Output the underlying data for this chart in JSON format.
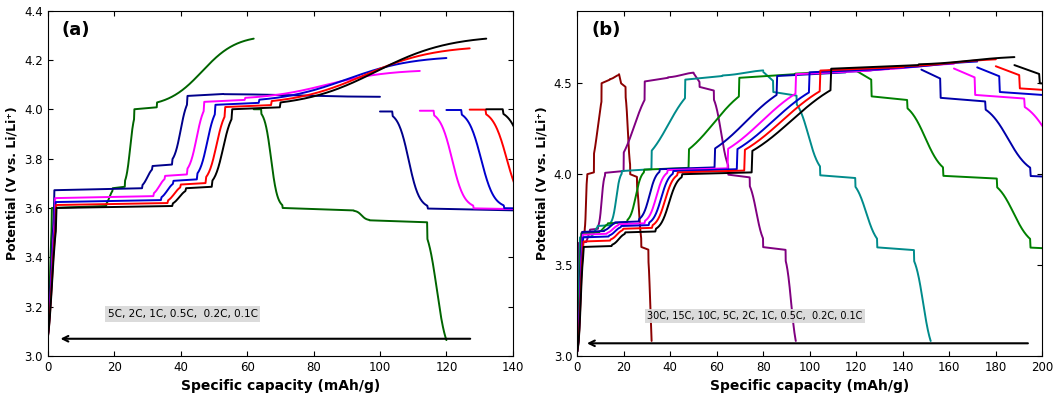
{
  "panel_a": {
    "title": "(a)",
    "xlim": [
      0,
      140
    ],
    "ylim": [
      3.0,
      4.4
    ],
    "xticks": [
      0,
      20,
      40,
      60,
      80,
      100,
      120,
      140
    ],
    "yticks": [
      3.0,
      3.2,
      3.4,
      3.6,
      3.8,
      4.0,
      4.2,
      4.4
    ],
    "xlabel": "Specific capacity (mAh/g)",
    "ylabel": "Potential (V vs. Li/Li⁺)",
    "legend_text": "5C, 2C, 1C, 0.5C,  0.2C, 0.1C",
    "colors": [
      "#006400",
      "#00008B",
      "#FF00FF",
      "#0000CD",
      "#FF0000",
      "#000000"
    ],
    "charge_caps": [
      62,
      100,
      112,
      120,
      127,
      132
    ],
    "discharge_caps": [
      58,
      96,
      108,
      116,
      124,
      129
    ],
    "v_offsets_charge": [
      0.0,
      0.18,
      0.1,
      0.06,
      0.03,
      0.0
    ],
    "v_offsets_discharge": [
      0.0,
      -0.06,
      -0.04,
      -0.02,
      -0.01,
      0.0
    ]
  },
  "panel_b": {
    "title": "(b)",
    "xlim": [
      0,
      200
    ],
    "ylim": [
      3.0,
      4.9
    ],
    "xticks": [
      0,
      20,
      40,
      60,
      80,
      100,
      120,
      140,
      160,
      180,
      200
    ],
    "yticks": [
      3.0,
      3.5,
      4.0,
      4.5
    ],
    "xlabel": "Specific capacity (mAh/g)",
    "ylabel": "Potential (V vs. Li/Li⁺)",
    "legend_text": "30C, 15C, 10C, 5C, 2C, 1C, 0.5C,  0.2C, 0.1C",
    "colors": [
      "#8B0000",
      "#800080",
      "#008B8B",
      "#008000",
      "#0000AA",
      "#FF00FF",
      "#0000CD",
      "#FF0000",
      "#000000"
    ],
    "charge_caps": [
      18,
      50,
      80,
      120,
      148,
      162,
      172,
      180,
      188
    ],
    "discharge_caps": [
      14,
      44,
      72,
      110,
      138,
      152,
      162,
      172,
      182
    ],
    "v_offsets_charge": [
      0.0,
      0.15,
      0.35,
      0.5,
      0.55,
      0.45,
      0.35,
      0.2,
      0.0
    ],
    "v_offsets_discharge": [
      0.0,
      -0.05,
      -0.12,
      -0.18,
      -0.2,
      -0.16,
      -0.12,
      -0.07,
      0.0
    ]
  },
  "figure_bg": "#FFFFFF"
}
